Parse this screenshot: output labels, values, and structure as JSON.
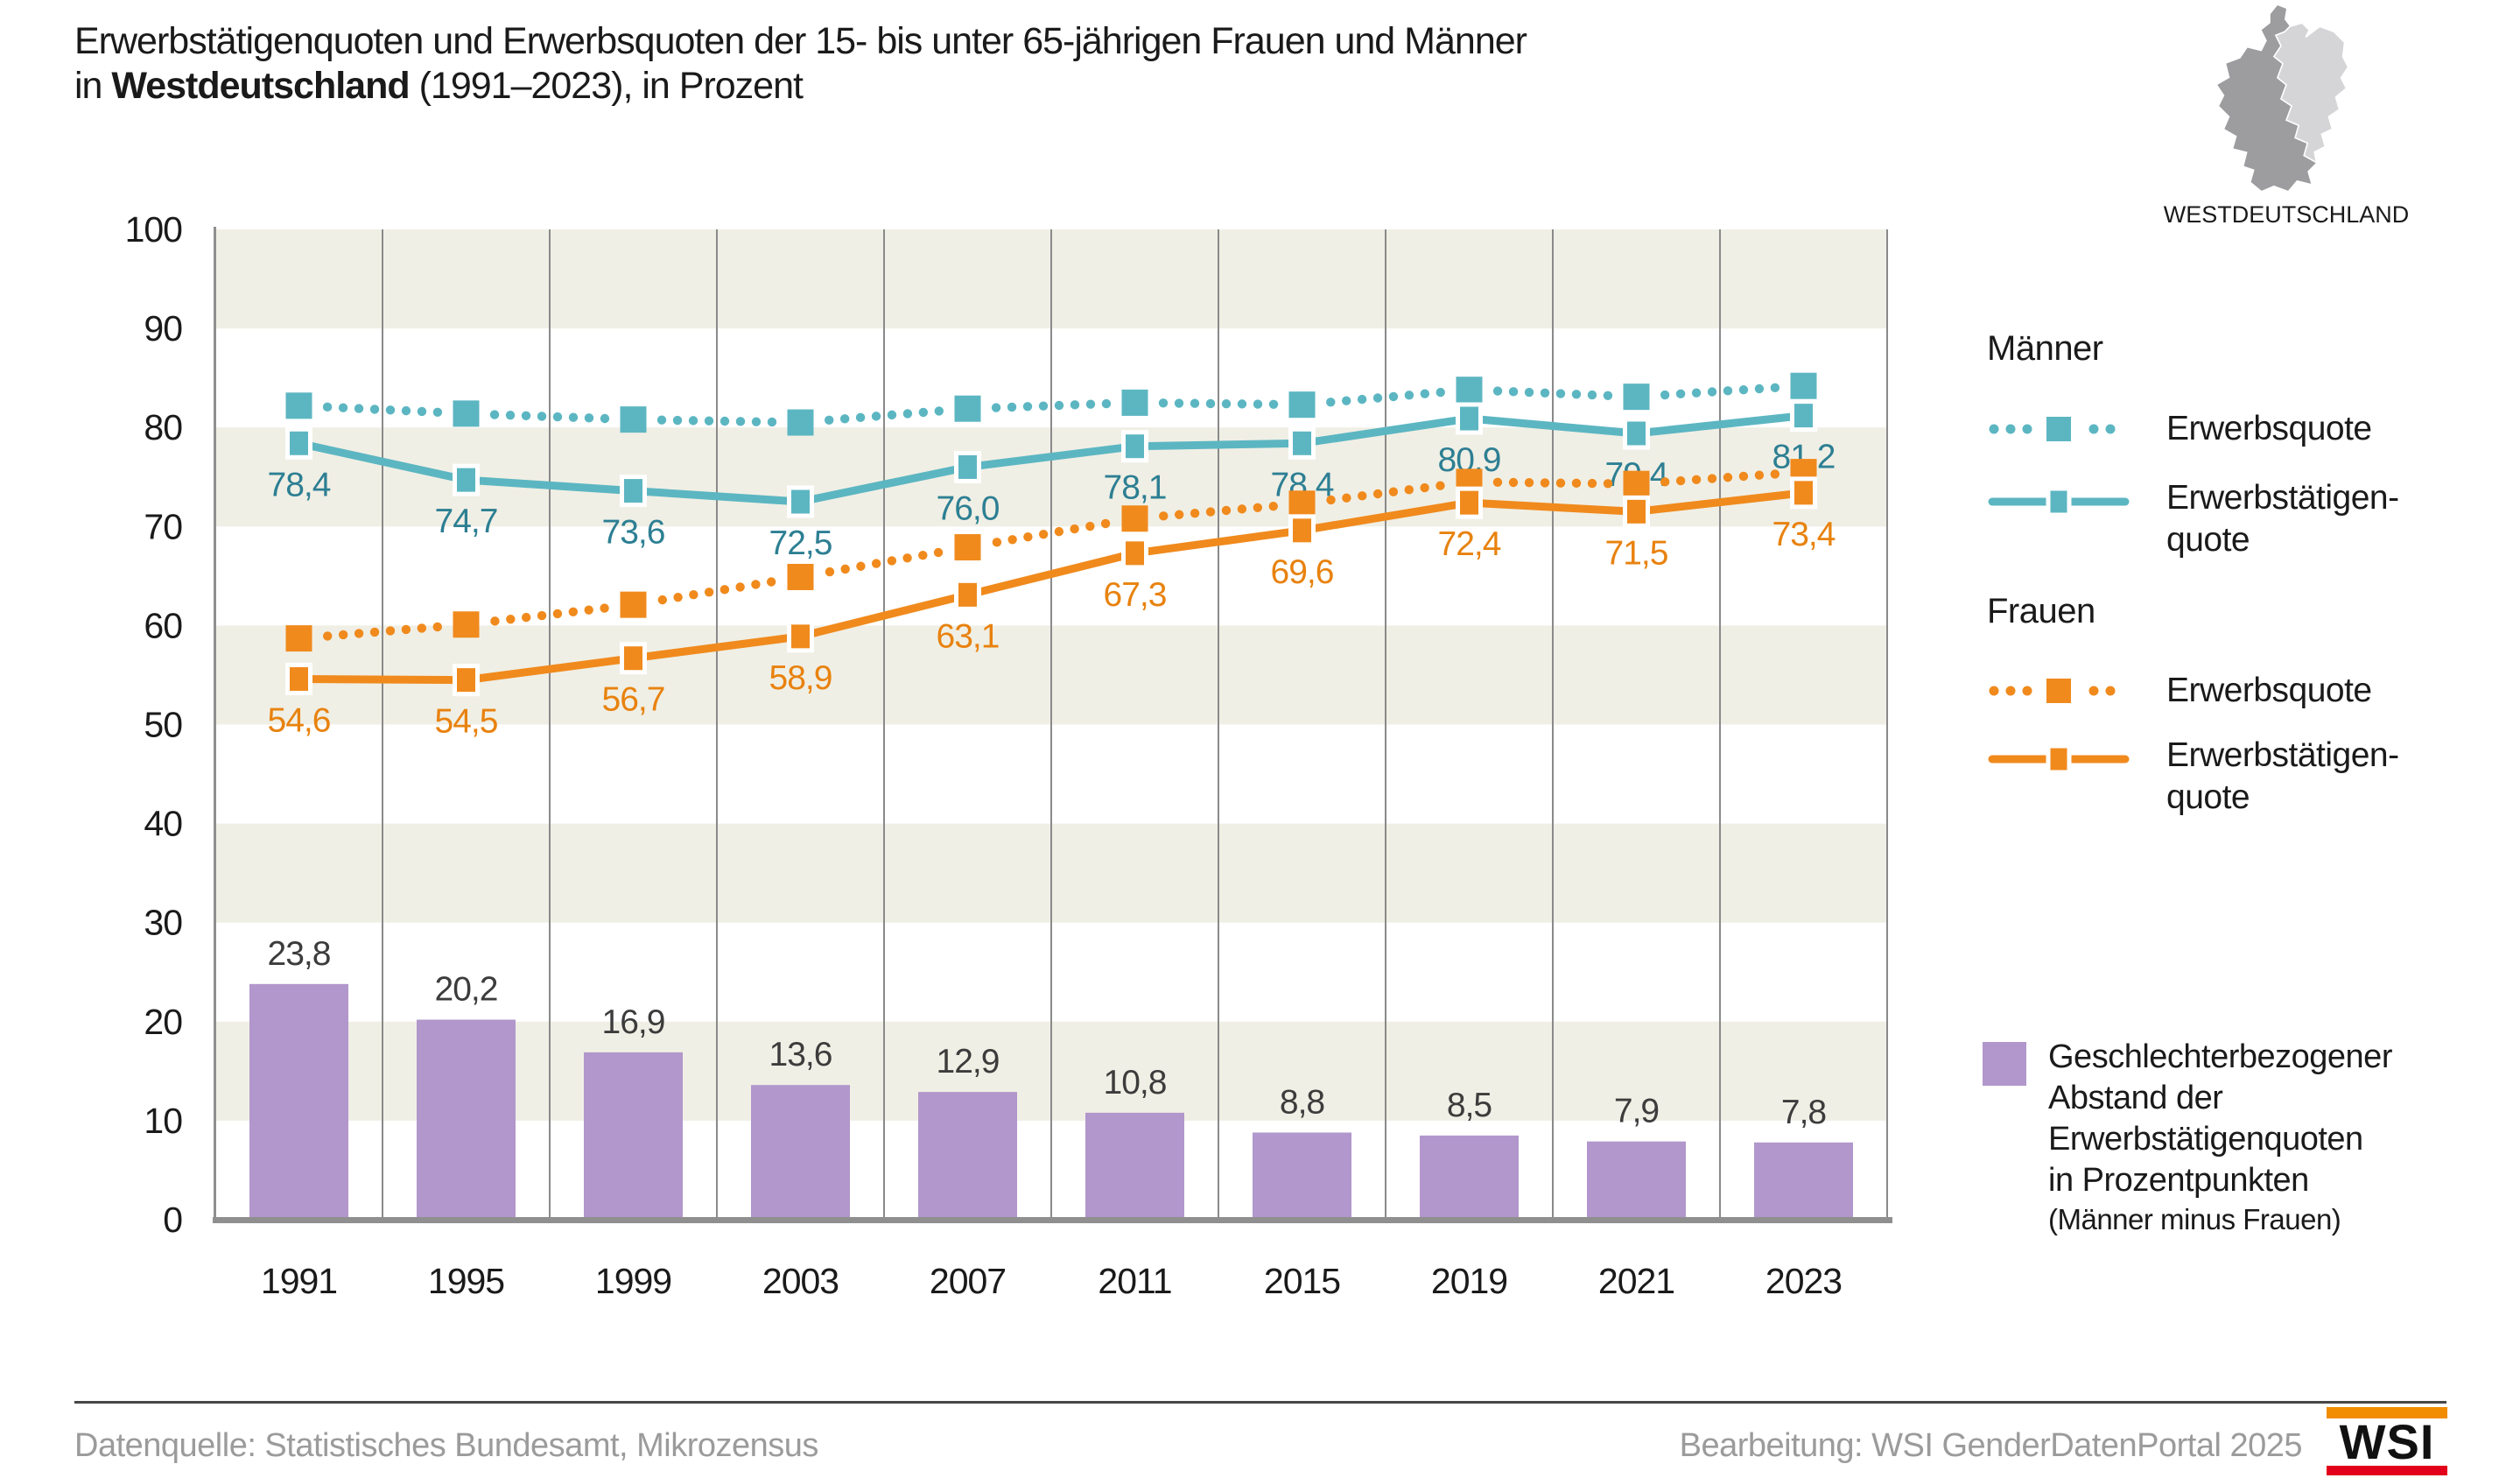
{
  "title": {
    "line1": "Erwerbstätigenquoten und Erwerbsquoten der 15- bis unter 65-jährigen Frauen und Männer",
    "line2_prefix": "in ",
    "line2_bold": "Westdeutschland",
    "line2_suffix": " (1991–2023), in Prozent"
  },
  "map": {
    "label": "WESTDEUTSCHLAND",
    "west_color": "#9d9da0",
    "east_color": "#d5d5d7"
  },
  "legend": {
    "maenner_title": "Männer",
    "frauen_title": "Frauen",
    "erwerbsquote_label": "Erwerbsquote",
    "erwerbstaetigenquote_line1": "Erwerbstätigen-",
    "erwerbstaetigenquote_line2": "quote",
    "gap_legend": {
      "color": "#b197cb",
      "lines": [
        "Geschlechterbezogener",
        "Abstand der",
        "Erwerbstätigenquoten",
        "in Prozentpunkten"
      ],
      "subline": "(Männer minus Frauen)"
    }
  },
  "chart_data": {
    "type": "line+bar",
    "categories": [
      "1991",
      "1995",
      "1999",
      "2003",
      "2007",
      "2011",
      "2015",
      "2019",
      "2021",
      "2023"
    ],
    "ylim": [
      0,
      100
    ],
    "yticks": [
      0,
      10,
      20,
      30,
      40,
      50,
      60,
      70,
      80,
      90,
      100
    ],
    "band_pairs": [
      [
        10,
        20
      ],
      [
        30,
        40
      ],
      [
        50,
        60
      ],
      [
        70,
        80
      ],
      [
        90,
        100
      ]
    ],
    "band_color": "#f0efe5",
    "grid_color": "#8a8a8a",
    "axis_color": "#8f8f8f",
    "tick_label_color": "#1a1a1a",
    "series": [
      {
        "name": "Männer Erwerbsquote",
        "group": "Männer",
        "style": "dotted",
        "color": "#5cb6c2",
        "values": [
          82.2,
          81.4,
          80.8,
          80.5,
          81.9,
          82.5,
          82.3,
          83.8,
          83.1,
          84.2
        ]
      },
      {
        "name": "Männer Erwerbstätigenquote",
        "group": "Männer",
        "style": "solid",
        "color": "#5cb6c2",
        "label_color": "#2d7f93",
        "values": [
          78.4,
          74.7,
          73.6,
          72.5,
          76.0,
          78.1,
          78.4,
          80.9,
          79.4,
          81.2
        ],
        "labels": [
          "78,4",
          "74,7",
          "73,6",
          "72,5",
          "76,0",
          "78,1",
          "78,4",
          "80,9",
          "79,4",
          "81,2"
        ]
      },
      {
        "name": "Frauen Erwerbsquote",
        "group": "Frauen",
        "style": "dotted",
        "color": "#f08a1d",
        "values": [
          58.7,
          60.1,
          62.1,
          64.9,
          67.9,
          70.8,
          72.3,
          74.5,
          74.3,
          75.5
        ]
      },
      {
        "name": "Frauen Erwerbstätigenquote",
        "group": "Frauen",
        "style": "solid",
        "color": "#f08a1d",
        "label_color": "#e8820e",
        "values": [
          54.6,
          54.5,
          56.7,
          58.9,
          63.1,
          67.3,
          69.6,
          72.4,
          71.5,
          73.4
        ],
        "labels": [
          "54,6",
          "54,5",
          "56,7",
          "58,9",
          "63,1",
          "67,3",
          "69,6",
          "72,4",
          "71,5",
          "73,4"
        ]
      }
    ],
    "bars": {
      "name": "Geschlechterbezogener Abstand der Erwerbstätigenquoten in Prozentpunkten (Männer minus Frauen)",
      "color": "#b197cb",
      "label_color": "#3c3c3c",
      "values": [
        23.8,
        20.2,
        16.9,
        13.6,
        12.9,
        10.8,
        8.8,
        8.5,
        7.9,
        7.8
      ],
      "labels": [
        "23,8",
        "20,2",
        "16,9",
        "13,6",
        "12,9",
        "10,8",
        "8,8",
        "8,5",
        "7,9",
        "7,8"
      ]
    }
  },
  "footer": {
    "source": "Datenquelle: Statistisches Bundesamt, Mikrozensus",
    "editing": "Bearbeitung: WSI GenderDatenPortal 2025",
    "logo_text": "WSI",
    "logo_top_color": "#f28c00",
    "logo_bottom_color": "#e2001a"
  }
}
